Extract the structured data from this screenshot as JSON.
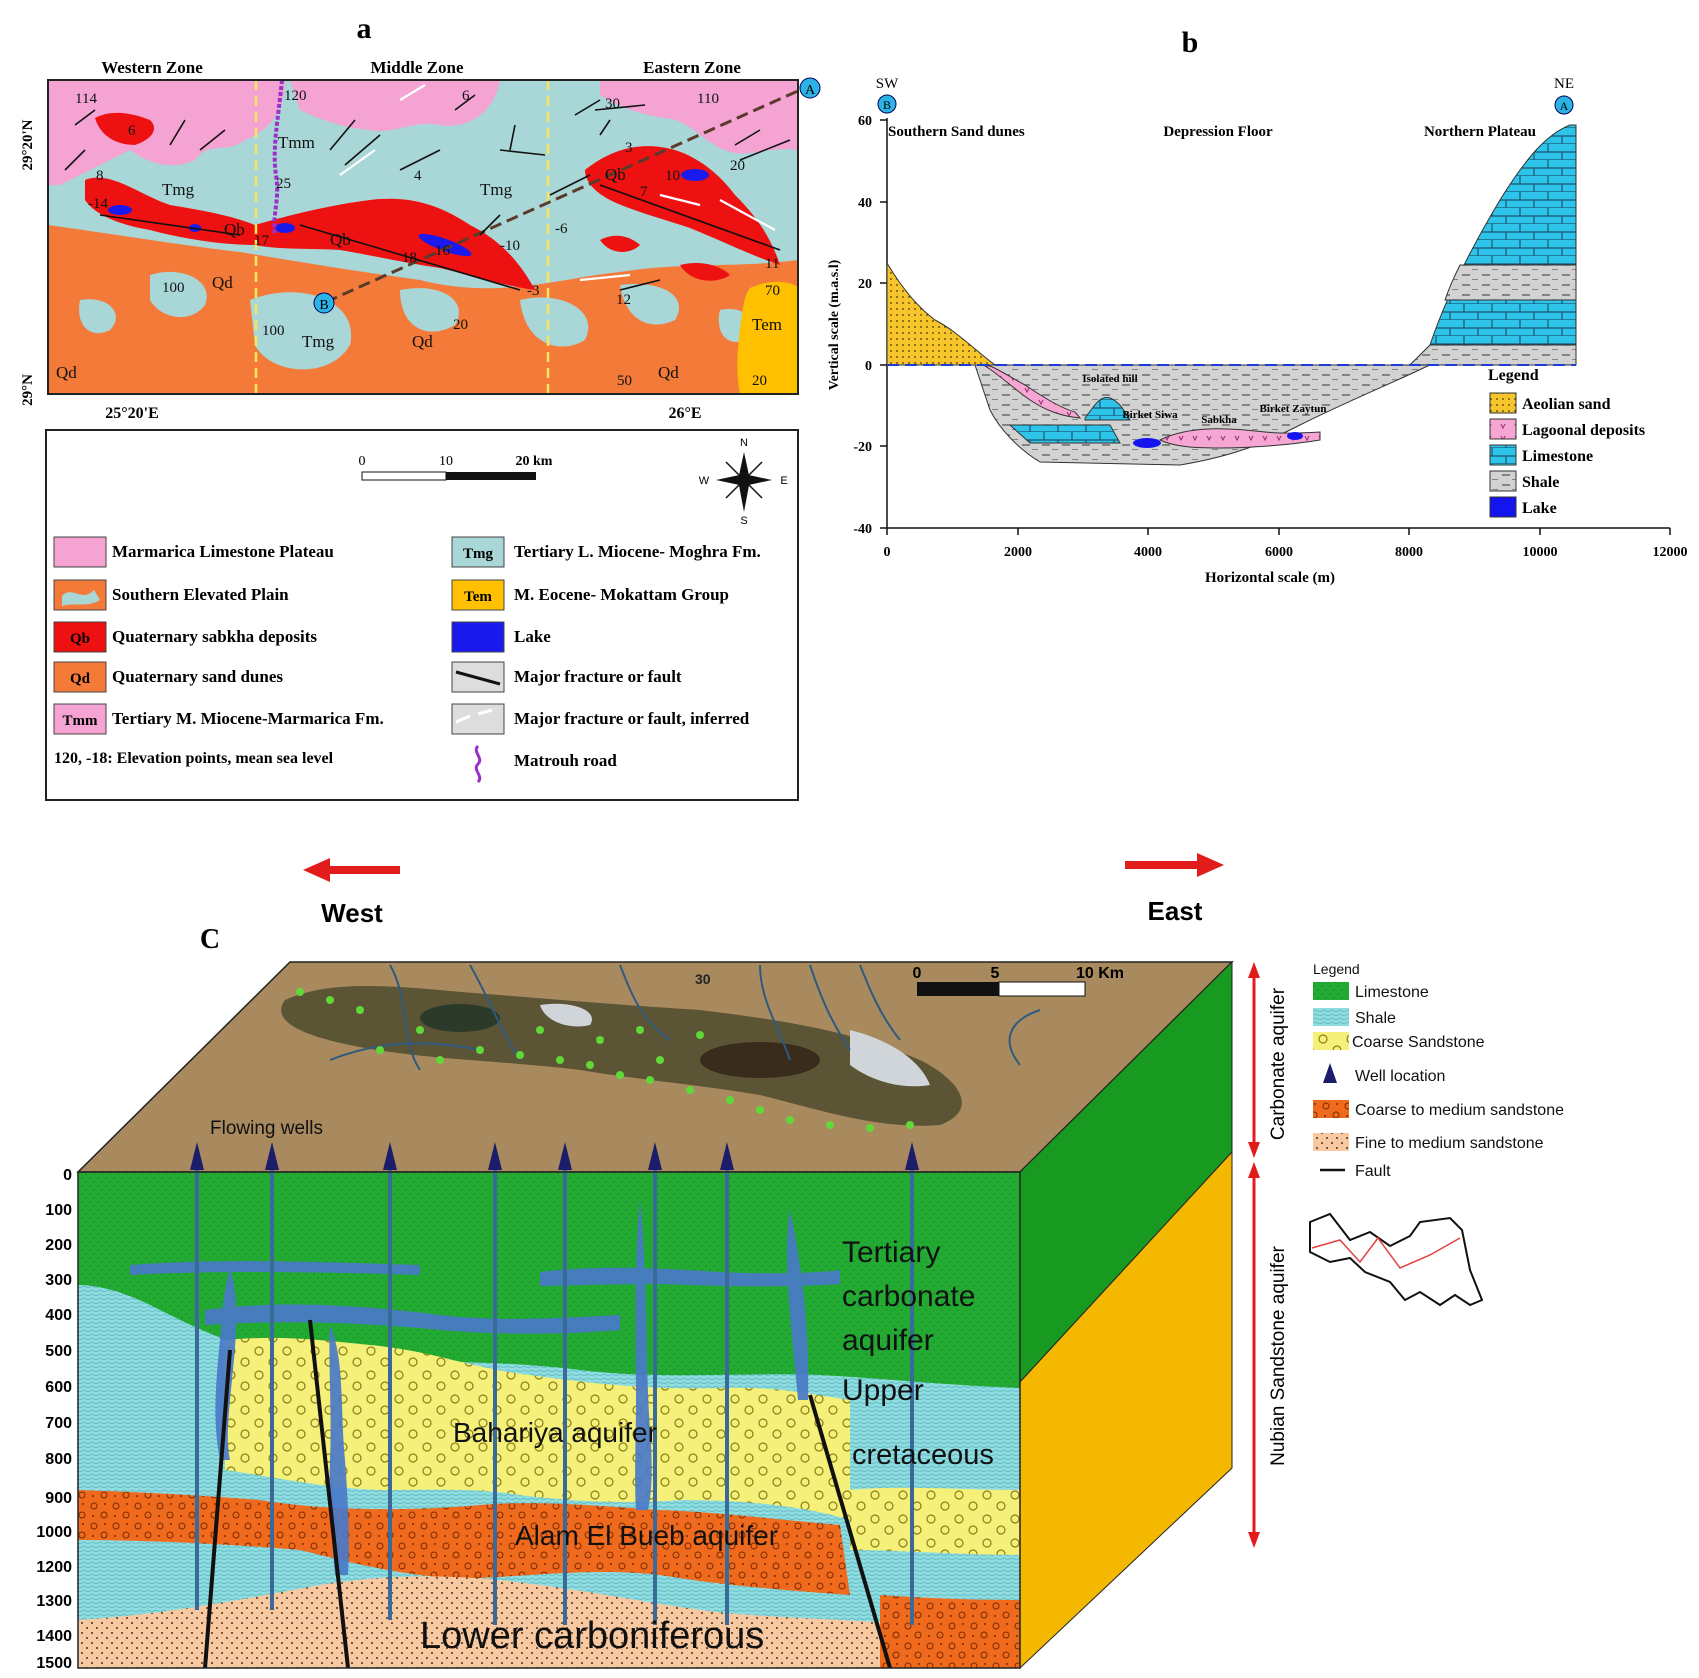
{
  "panel_a": {
    "label": "a",
    "zones": [
      "Western Zone",
      "Middle Zone",
      "Eastern Zone"
    ],
    "lat_labels": [
      "29°20'N",
      "29°N"
    ],
    "lon_labels": [
      "25°20'E",
      "26°E"
    ],
    "point_A": "A",
    "point_B": "B",
    "unit_labels": [
      "Tmm",
      "Tmg",
      "Tmg",
      "Tmg",
      "Qb",
      "Qb",
      "Qb",
      "Qd",
      "Qd",
      "Qd",
      "Qd",
      "Tmg",
      "Tem"
    ],
    "elevations": [
      "114",
      "120",
      "6",
      "30",
      "110",
      "6",
      "8",
      "-14",
      "25",
      "4",
      "3",
      "10",
      "7",
      "20",
      "17",
      "18",
      "16",
      "-10",
      "-6",
      "11",
      "100",
      "100",
      "20",
      "12",
      "70",
      "-3",
      "50",
      "20"
    ],
    "scale": {
      "ticks": [
        "0",
        "10",
        "20 km"
      ]
    },
    "compass": {
      "n": "N",
      "s": "S",
      "e": "E",
      "w": "W"
    },
    "legend": [
      {
        "swatch": "",
        "color": "#f4a3d3",
        "label": "Marmarica Limestone Plateau"
      },
      {
        "swatch": "",
        "color": "#f47a3a",
        "label": "Southern Elevated Plain"
      },
      {
        "swatch": "Qb",
        "color": "#ee1111",
        "label": "Quaternary sabkha deposits"
      },
      {
        "swatch": "Qd",
        "color": "#f47a3a",
        "label": "Quaternary sand dunes"
      },
      {
        "swatch": "Tmm",
        "color": "#f4a3d3",
        "label": "Tertiary M. Miocene-Marmarica Fm."
      },
      {
        "swatch": "Tmg",
        "color": "#a9d6d6",
        "label": "Tertiary L. Miocene- Moghra Fm."
      },
      {
        "swatch": "Tem",
        "color": "#ffc000",
        "label": "M. Eocene- Mokattam Group"
      },
      {
        "swatch": "",
        "color": "#1a1aee",
        "label": "Lake"
      },
      {
        "swatch": "",
        "color": "#dddddd",
        "label": "Major fracture or fault"
      },
      {
        "swatch": "",
        "color": "#dddddd",
        "label": "Major fracture or fault, inferred"
      },
      {
        "swatch": "",
        "color": "#ffffff",
        "label": "Matrouh road"
      }
    ],
    "elevation_note": "120, -18: Elevation points, mean sea level"
  },
  "panel_b": {
    "label": "b",
    "sw": "SW",
    "ne": "NE",
    "point_B": "B",
    "point_A": "A",
    "regions": [
      "Southern Sand dunes",
      "Depression Floor",
      "Northern Plateau"
    ],
    "features": [
      "Isolated hill",
      "Birket Siwa",
      "Sabkha",
      "Birket Zaytun"
    ],
    "ylabel": "Vertical scale (m.a.s.l)",
    "xlabel": "Horizontal scale (m)",
    "yticks": [
      "60",
      "40",
      "20",
      "0",
      "-20",
      "-40"
    ],
    "xticks": [
      "0",
      "2000",
      "4000",
      "6000",
      "8000",
      "10000",
      "12000"
    ],
    "legend_title": "Legend",
    "legend": [
      "Aeolian sand",
      "Lagoonal deposits",
      "Limestone",
      "Shale",
      "Lake"
    ],
    "colors": {
      "aeolian": "#f6c42b",
      "lagoonal": "#f5a6d2",
      "limestone": "#2ec4ea",
      "shale": "#cccccc",
      "lake": "#1414ee"
    }
  },
  "panel_c": {
    "label": "C",
    "west": "West",
    "east": "East",
    "flowing_wells": "Flowing wells",
    "depth_ticks": [
      "0",
      "100",
      "200",
      "300",
      "400",
      "500",
      "600",
      "700",
      "800",
      "900",
      "1000",
      "1200",
      "1300",
      "1400",
      "1500"
    ],
    "layer_labels": [
      "Tertiary",
      "carbonate",
      "aquifer",
      "Upper",
      "cretaceous",
      "Bahariya aquifer",
      "Alam El Bueb aquifer",
      "Lower carboniferous"
    ],
    "scale": {
      "ticks": [
        "0",
        "5",
        "10 Km"
      ]
    },
    "contours": [
      "30"
    ],
    "aquifer_labels": [
      "Carbonate aquifer",
      "Nubian Sandstone aquifer"
    ],
    "legend_title": "Legend",
    "legend": [
      "Limestone",
      "Shale",
      "Coarse Sandstone",
      "Well location",
      "Coarse to medium sandstone",
      "Fine to medium sandstone",
      "Fault"
    ],
    "colors": {
      "limestone": "#22aa33",
      "shale": "#8fdde0",
      "coarse_sand": "#f5f07a",
      "coarse_medium": "#f06a1e",
      "fine_medium": "#f8c9a0",
      "water": "#4a7ac8",
      "side_yellow": "#f5b800"
    }
  }
}
